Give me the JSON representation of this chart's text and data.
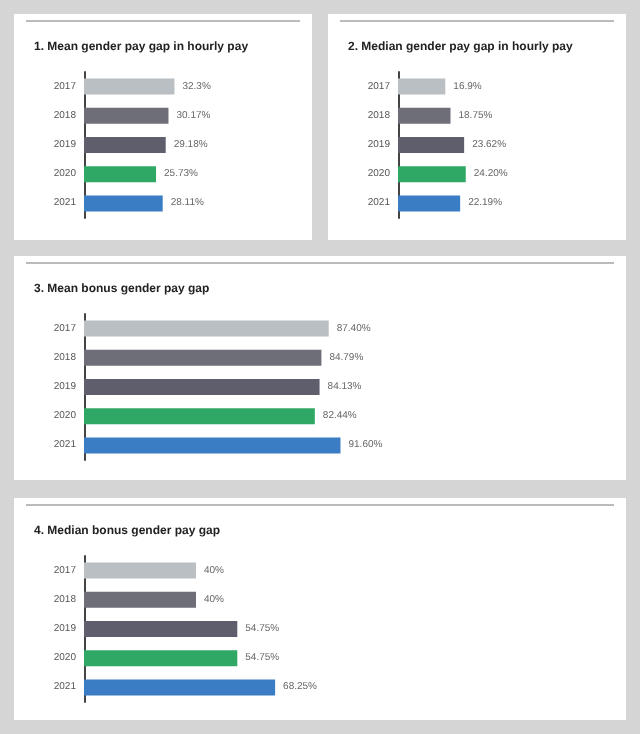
{
  "chart_data": [
    {
      "type": "bar",
      "orientation": "horizontal",
      "title": "1. Mean gender pay gap in hourly pay",
      "categories": [
        "2017",
        "2018",
        "2019",
        "2020",
        "2021"
      ],
      "values": [
        32.3,
        30.17,
        29.18,
        25.73,
        28.11
      ],
      "value_labels": [
        "32.3%",
        "30.17%",
        "29.18%",
        "25.73%",
        "28.11%"
      ],
      "colors": [
        "#b9bfc3",
        "#6e6e78",
        "#5e5e6c",
        "#2fa865",
        "#3b7dc4"
      ]
    },
    {
      "type": "bar",
      "orientation": "horizontal",
      "title": "2. Median gender pay gap in hourly pay",
      "categories": [
        "2017",
        "2018",
        "2019",
        "2020",
        "2021"
      ],
      "values": [
        16.9,
        18.75,
        23.62,
        24.2,
        22.19
      ],
      "value_labels": [
        "16.9%",
        "18.75%",
        "23.62%",
        "24.20%",
        "22.19%"
      ],
      "colors": [
        "#b9bfc3",
        "#6e6e78",
        "#5e5e6c",
        "#2fa865",
        "#3b7dc4"
      ]
    },
    {
      "type": "bar",
      "orientation": "horizontal",
      "title": "3. Mean bonus gender pay gap",
      "categories": [
        "2017",
        "2018",
        "2019",
        "2020",
        "2021"
      ],
      "values": [
        87.4,
        84.79,
        84.13,
        82.44,
        91.6
      ],
      "value_labels": [
        "87.40%",
        "84.79%",
        "84.13%",
        "82.44%",
        "91.60%"
      ],
      "colors": [
        "#b9bfc3",
        "#6e6e78",
        "#5e5e6c",
        "#2fa865",
        "#3b7dc4"
      ]
    },
    {
      "type": "bar",
      "orientation": "horizontal",
      "title": "4. Median bonus gender pay gap",
      "categories": [
        "2017",
        "2018",
        "2019",
        "2020",
        "2021"
      ],
      "values": [
        40,
        40,
        54.75,
        54.75,
        68.25
      ],
      "value_labels": [
        "40%",
        "40%",
        "54.75%",
        "54.75%",
        "68.25%"
      ],
      "colors": [
        "#b9bfc3",
        "#6e6e78",
        "#5e5e6c",
        "#2fa865",
        "#3b7dc4"
      ]
    }
  ]
}
